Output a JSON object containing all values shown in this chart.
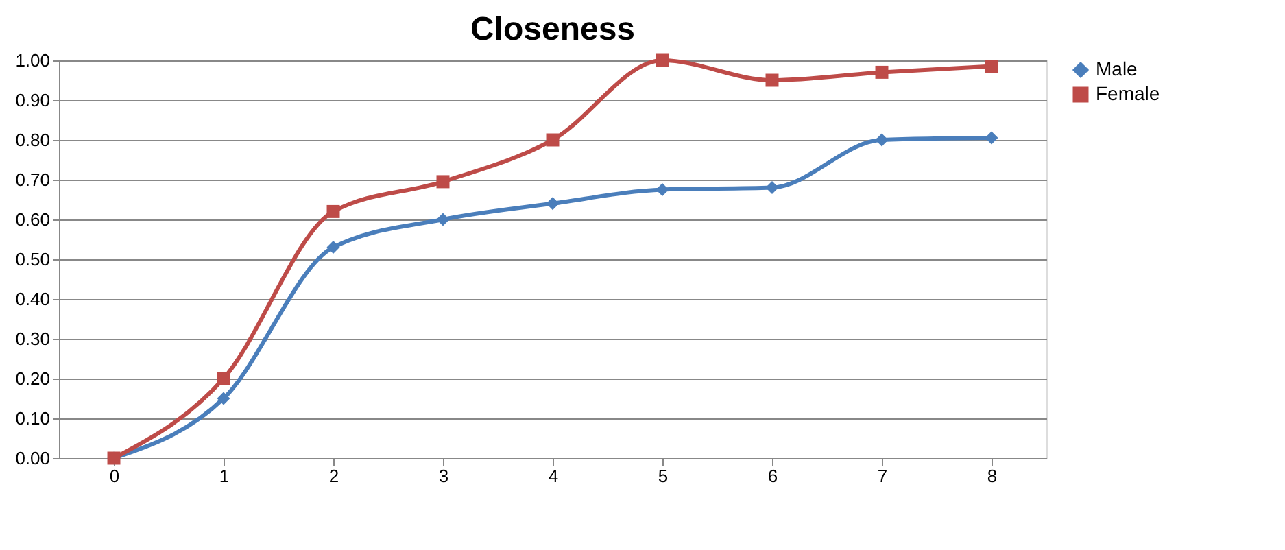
{
  "chart_data": {
    "type": "line",
    "title": "Closeness",
    "categories": [
      "0",
      "1",
      "2",
      "3",
      "4",
      "5",
      "6",
      "7",
      "8"
    ],
    "series": [
      {
        "name": "Male",
        "color": "#4a7ebb",
        "marker": "diamond",
        "values": [
          0,
          0.15,
          0.53,
          0.6,
          0.64,
          0.675,
          0.68,
          0.8,
          0.805
        ]
      },
      {
        "name": "Female",
        "color": "#be4b48",
        "marker": "square",
        "values": [
          0,
          0.2,
          0.62,
          0.695,
          0.8,
          1.0,
          0.95,
          0.97,
          0.985
        ]
      }
    ],
    "ylim": [
      0,
      1
    ],
    "yticks": [
      {
        "value": 0,
        "label": "0.00"
      },
      {
        "value": 0.1,
        "label": "0.10"
      },
      {
        "value": 0.2,
        "label": "0.20"
      },
      {
        "value": 0.3,
        "label": "0.30"
      },
      {
        "value": 0.4,
        "label": "0.40"
      },
      {
        "value": 0.5,
        "label": "0.50"
      },
      {
        "value": 0.6,
        "label": "0.60"
      },
      {
        "value": 0.7,
        "label": "0.70"
      },
      {
        "value": 0.8,
        "label": "0.80"
      },
      {
        "value": 0.9,
        "label": "0.90"
      },
      {
        "value": 1,
        "label": "1.00"
      }
    ],
    "grid": "y",
    "legend": "right",
    "line_style": "solid"
  }
}
